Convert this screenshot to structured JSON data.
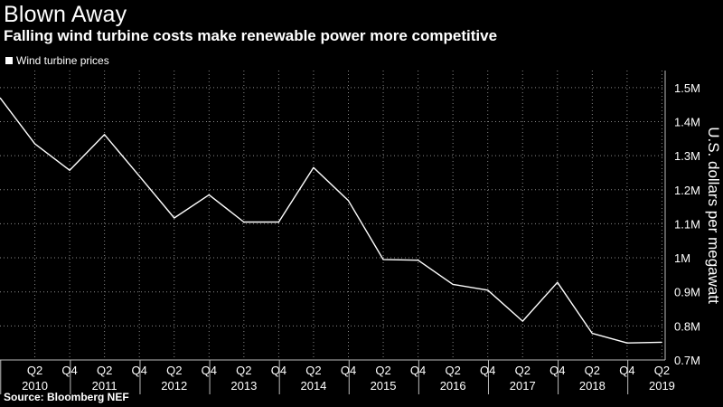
{
  "title": "Blown Away",
  "subtitle": "Falling wind turbine costs make renewable power more competitive",
  "legend": "Wind turbine prices",
  "source": "Source: Bloomberg NEF",
  "chart_data": {
    "type": "line",
    "title": "Blown Away",
    "subtitle": "Falling wind turbine costs make renewable power more competitive",
    "ylabel": "U.S. dollars per megawatt",
    "ylim": [
      0.7,
      1.55
    ],
    "yticks": [
      0.7,
      0.8,
      0.9,
      1.0,
      1.1,
      1.2,
      1.3,
      1.4,
      1.5
    ],
    "ytick_labels": [
      "0.7M",
      "0.8M",
      "0.9M",
      "1M",
      "1.1M",
      "1.2M",
      "1.3M",
      "1.4M",
      "1.5M"
    ],
    "quarter_labels": [
      "Q2",
      "Q4",
      "Q2",
      "Q4",
      "Q2",
      "Q4",
      "Q2",
      "Q4",
      "Q2",
      "Q4",
      "Q2",
      "Q4",
      "Q2",
      "Q4",
      "Q2",
      "Q4",
      "Q2",
      "Q4",
      "Q2"
    ],
    "year_labels": [
      "2010",
      "2011",
      "2012",
      "2013",
      "2014",
      "2015",
      "2016",
      "2017",
      "2018",
      "2019"
    ],
    "grid": true,
    "legend_position": "top-left",
    "series": [
      {
        "name": "Wind turbine prices",
        "x": [
          "2009 H2",
          "2010 H1",
          "2010 H2",
          "2011 H1",
          "2011 H2",
          "2012 H1",
          "2012 H2",
          "2013 H1",
          "2013 H2",
          "2014 H1",
          "2014 H2",
          "2015 H1",
          "2015 H2",
          "2016 H1",
          "2016 H2",
          "2017 H1",
          "2017 H2",
          "2018 H1",
          "2018 H2",
          "2019 H1"
        ],
        "values": [
          1.47,
          1.335,
          1.257,
          1.362,
          1.24,
          1.117,
          1.185,
          1.105,
          1.105,
          1.265,
          1.168,
          0.995,
          0.993,
          0.922,
          0.905,
          0.814,
          0.928,
          0.778,
          0.75,
          0.752
        ]
      }
    ]
  }
}
